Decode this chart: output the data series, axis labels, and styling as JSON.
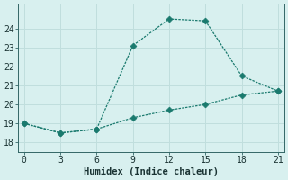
{
  "title": "",
  "xlabel": "Humidex (Indice chaleur)",
  "line1_x": [
    0,
    3,
    6,
    9,
    12,
    15,
    18,
    21
  ],
  "line1_y": [
    19.0,
    18.5,
    18.7,
    23.1,
    24.5,
    24.4,
    21.5,
    20.7
  ],
  "line2_x": [
    0,
    3,
    6,
    9,
    12,
    15,
    18,
    21
  ],
  "line2_y": [
    19.0,
    18.5,
    18.7,
    19.3,
    19.7,
    20.0,
    20.5,
    20.7
  ],
  "line_color": "#1a7a6e",
  "bg_color": "#d8f0ef",
  "grid_color": "#c0dedd",
  "xlim": [
    -0.5,
    21.5
  ],
  "ylim": [
    17.5,
    25.3
  ],
  "xticks": [
    0,
    3,
    6,
    9,
    12,
    15,
    18,
    21
  ],
  "yticks": [
    18,
    19,
    20,
    21,
    22,
    23,
    24
  ],
  "markersize": 3.5,
  "linewidth": 0.9,
  "linestyle": "--",
  "label_fontsize": 7.5
}
